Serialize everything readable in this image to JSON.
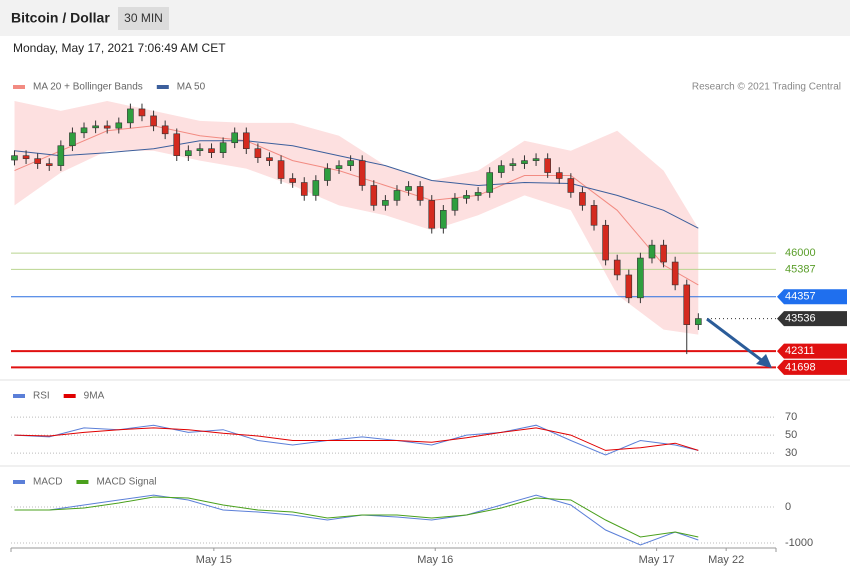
{
  "header": {
    "title": "Bitcoin / Dollar",
    "interval": "30 MIN",
    "timestamp": "Monday, May 17, 2021 7:06:49 AM CET",
    "source": "Research © 2021 Trading Central"
  },
  "chart_data": [
    {
      "type": "candlestick",
      "xlim": [
        -0.3,
        65.7
      ],
      "ylim": [
        41300,
        52700
      ],
      "up_color": "#2f9e3f",
      "down_color": "#d42a1f",
      "x": [
        0,
        1,
        2,
        3,
        4,
        5,
        6,
        7,
        8,
        9,
        10,
        11,
        12,
        13,
        14,
        15,
        16,
        17,
        18,
        19,
        20,
        21,
        22,
        23,
        24,
        25,
        26,
        27,
        28,
        29,
        30,
        31,
        32,
        33,
        34,
        35,
        36,
        37,
        38,
        39,
        40,
        41,
        42,
        43,
        44,
        45,
        46,
        47,
        48,
        49,
        50,
        51,
        52,
        53,
        54,
        55,
        56,
        57,
        58,
        59
      ],
      "open": [
        49500,
        49665,
        49553,
        49366,
        49291,
        50039,
        50525,
        50712,
        50787,
        50700,
        50899,
        51423,
        51161,
        50787,
        50488,
        49665,
        49852,
        49927,
        49777,
        50151,
        50525,
        49927,
        49590,
        49478,
        48805,
        48655,
        48169,
        48730,
        49179,
        49291,
        49478,
        48543,
        47795,
        47982,
        48356,
        48506,
        47982,
        46935,
        47608,
        48057,
        48169,
        48281,
        49029,
        49291,
        49366,
        49478,
        49553,
        49029,
        48805,
        48281,
        47795,
        47047,
        45738,
        45177,
        44317,
        45813,
        46299,
        45663,
        44803,
        43307
      ],
      "high": [
        49865,
        49865,
        49753,
        49566,
        50239,
        50725,
        50912,
        50987,
        50987,
        51099,
        51623,
        51623,
        51361,
        50987,
        50688,
        50052,
        50127,
        50127,
        50351,
        50725,
        50725,
        50127,
        49790,
        49678,
        49005,
        48855,
        48930,
        49379,
        49491,
        49678,
        49678,
        48743,
        48182,
        48556,
        48706,
        48706,
        48182,
        47808,
        48257,
        48369,
        48481,
        49229,
        49491,
        49566,
        49678,
        49753,
        49753,
        49229,
        49005,
        48481,
        47995,
        47247,
        45938,
        45377,
        46013,
        46499,
        46499,
        45863,
        45003,
        43736
      ],
      "low": [
        49300,
        49353,
        49166,
        49091,
        49091,
        49839,
        50325,
        50512,
        50500,
        50500,
        50699,
        50961,
        50587,
        50288,
        49465,
        49465,
        49652,
        49577,
        49577,
        49951,
        49727,
        49390,
        49278,
        48605,
        48455,
        47969,
        47969,
        48530,
        48979,
        49091,
        48343,
        47595,
        47595,
        47782,
        48156,
        47782,
        46735,
        46735,
        47408,
        47857,
        47969,
        48081,
        48829,
        49091,
        49166,
        49278,
        48829,
        48605,
        48081,
        47595,
        46847,
        45538,
        44977,
        44117,
        44117,
        45613,
        45463,
        44603,
        42200,
        43107
      ],
      "close": [
        49665,
        49553,
        49366,
        49291,
        50039,
        50525,
        50712,
        50787,
        50700,
        50899,
        51423,
        51161,
        50787,
        50488,
        49665,
        49852,
        49927,
        49777,
        50151,
        50525,
        49927,
        49590,
        49478,
        48805,
        48655,
        48169,
        48730,
        49179,
        49291,
        49478,
        48543,
        47795,
        47982,
        48356,
        48506,
        47982,
        46935,
        47608,
        48057,
        48169,
        48281,
        49029,
        49291,
        49366,
        49478,
        49553,
        49029,
        48805,
        48281,
        47795,
        47047,
        45738,
        45177,
        44317,
        45813,
        46299,
        45663,
        44803,
        43307,
        43536
      ],
      "bands": {
        "x": [
          0,
          4,
          8,
          12,
          16,
          20,
          24,
          28,
          32,
          36,
          40,
          44,
          48,
          52,
          56,
          59
        ],
        "color": "#fde0e0",
        "upper": [
          51722,
          51348,
          51722,
          51348,
          50974,
          50899,
          50899,
          50413,
          49291,
          48730,
          49104,
          50226,
          49852,
          50600,
          49104,
          46935
        ],
        "lower": [
          47795,
          49029,
          49852,
          49852,
          49478,
          49179,
          48543,
          47795,
          47421,
          46860,
          47421,
          48169,
          47608,
          44429,
          43120,
          42933
        ]
      },
      "series": [
        {
          "name": "MA 20 + Bollinger Bands",
          "color": "#f28b82",
          "x": [
            0,
            4,
            8,
            12,
            16,
            20,
            24,
            28,
            32,
            36,
            40,
            44,
            48,
            52,
            56,
            59
          ],
          "values": [
            49104,
            49852,
            50600,
            50787,
            50413,
            50226,
            49478,
            49104,
            48543,
            47982,
            48169,
            48917,
            48917,
            47608,
            45551,
            44803
          ]
        },
        {
          "name": "MA 50",
          "color": "#3c5f9c",
          "x": [
            0,
            4,
            8,
            12,
            16,
            20,
            24,
            28,
            32,
            36,
            40,
            44,
            48,
            52,
            56,
            59
          ],
          "values": [
            49852,
            49665,
            49777,
            49927,
            50226,
            50226,
            50039,
            49665,
            49291,
            48730,
            48543,
            48655,
            48618,
            48169,
            47608,
            46935
          ]
        }
      ],
      "levels": [
        {
          "value": 46000,
          "color": "#b9d48f",
          "label_color": "#5a9e2a",
          "boxed": false,
          "width": 1
        },
        {
          "value": 45387,
          "color": "#b9d48f",
          "label_color": "#5a9e2a",
          "boxed": false,
          "width": 1
        },
        {
          "value": 44357,
          "color": "#2a6fe0",
          "label_color": "#1f6fee",
          "boxed": true,
          "width": 1
        },
        {
          "value": 43536,
          "color": "#333333",
          "label_color": "#333333",
          "boxed": true,
          "width": 1,
          "dashed": true
        },
        {
          "value": 42311,
          "color": "#e01010",
          "label_color": "#e01010",
          "boxed": true,
          "width": 2
        },
        {
          "value": 41698,
          "color": "#e01010",
          "label_color": "#e01010",
          "boxed": true,
          "width": 2
        }
      ]
    },
    {
      "type": "line",
      "xlim": [
        -0.3,
        65.7
      ],
      "ylim": [
        19,
        108
      ],
      "yticks": [
        30,
        50,
        70
      ],
      "grid": true,
      "series": [
        {
          "name": "RSI",
          "color": "#5b7fd8",
          "x": [
            0,
            3,
            6,
            9,
            12,
            15,
            18,
            21,
            24,
            27,
            30,
            33,
            36,
            39,
            42,
            45,
            48,
            51,
            54,
            57,
            59
          ],
          "values": [
            50,
            48,
            58,
            56,
            61,
            53,
            56,
            44,
            39,
            44,
            48,
            44,
            39,
            50,
            53,
            61,
            44,
            28,
            44,
            39,
            33
          ]
        },
        {
          "name": "9MA",
          "color": "#e00000",
          "x": [
            0,
            3,
            6,
            9,
            12,
            15,
            18,
            21,
            24,
            27,
            30,
            33,
            36,
            39,
            42,
            45,
            48,
            51,
            54,
            57,
            59
          ],
          "values": [
            50,
            49,
            53,
            56,
            58,
            56,
            52,
            49,
            44,
            44,
            44,
            44,
            42,
            47,
            53,
            58,
            50,
            33,
            36,
            41,
            33
          ]
        }
      ]
    },
    {
      "type": "line",
      "xlim": [
        -0.3,
        65.7
      ],
      "ylim": [
        -1140,
        1030
      ],
      "yticks": [
        -1000,
        0
      ],
      "grid": true,
      "xticks": [
        {
          "value": 17.2,
          "label": "May 15"
        },
        {
          "value": 36.3,
          "label": "May 16"
        },
        {
          "value": 55.4,
          "label": "May 17"
        },
        {
          "value": 61.4,
          "label": "May 22"
        }
      ],
      "series": [
        {
          "name": "MACD",
          "color": "#5b7fd8",
          "x": [
            0,
            3,
            6,
            9,
            12,
            15,
            18,
            21,
            24,
            27,
            30,
            33,
            36,
            39,
            42,
            45,
            48,
            51,
            54,
            57,
            59
          ],
          "values": [
            -83,
            -83,
            56,
            194,
            333,
            194,
            -83,
            -139,
            -222,
            -361,
            -222,
            -278,
            -361,
            -222,
            56,
            333,
            56,
            -639,
            -1056,
            -694,
            -917
          ]
        },
        {
          "name": "MACD Signal",
          "color": "#4aa01c",
          "x": [
            0,
            3,
            6,
            9,
            12,
            15,
            18,
            21,
            24,
            27,
            30,
            33,
            36,
            39,
            42,
            45,
            48,
            51,
            54,
            57,
            59
          ],
          "values": [
            -83,
            -83,
            -28,
            111,
            278,
            250,
            56,
            -83,
            -139,
            -306,
            -222,
            -222,
            -306,
            -222,
            -28,
            250,
            194,
            -361,
            -833,
            -694,
            -833
          ]
        }
      ]
    }
  ]
}
